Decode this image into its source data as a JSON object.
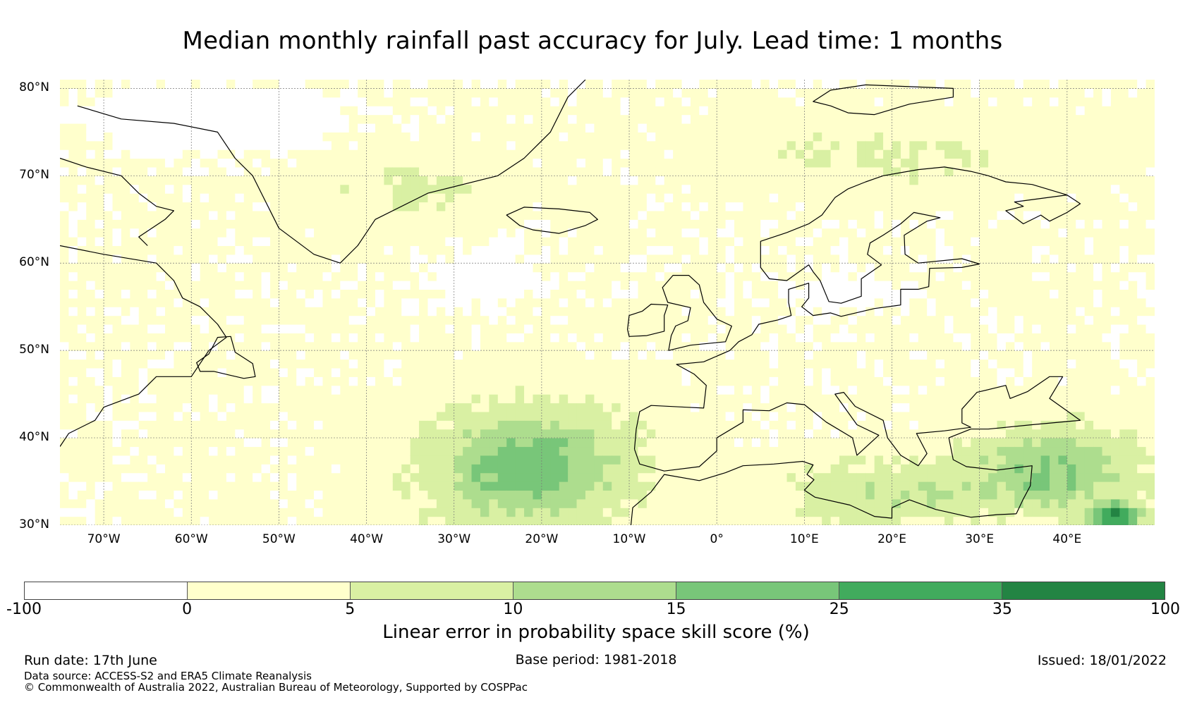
{
  "title": "Median monthly rainfall past accuracy for July. Lead time: 1 months",
  "map": {
    "lon_range": [
      -75,
      50
    ],
    "lat_range": [
      30,
      81
    ],
    "lat_labels": [
      "30°N",
      "40°N",
      "50°N",
      "60°N",
      "70°N",
      "80°N"
    ],
    "lat_values": [
      30,
      40,
      50,
      60,
      70,
      80
    ],
    "lon_labels": [
      "70°W",
      "60°W",
      "50°W",
      "40°W",
      "30°W",
      "20°W",
      "10°W",
      "0°",
      "10°E",
      "20°E",
      "30°E",
      "40°E"
    ],
    "lon_values": [
      -70,
      -60,
      -50,
      -40,
      -30,
      -20,
      -10,
      0,
      10,
      20,
      30,
      40
    ]
  },
  "colorbar": {
    "label": "Linear error in probability space skill score (%)",
    "ticks": [
      "-100",
      "0",
      "5",
      "10",
      "15",
      "25",
      "35",
      "100"
    ],
    "colors": [
      "#ffffff",
      "#ffffcc",
      "#d9f0a3",
      "#addd8e",
      "#78c679",
      "#41ab5d",
      "#238443"
    ]
  },
  "footer": {
    "run_date": "Run date: 17th June",
    "base_period": "Base period: 1981-2018",
    "issued": "Issued: 18/01/2022",
    "data_source": "Data source: ACCESS-S2 and ERA5 Climate Reanalysis",
    "copyright": "© Commonwealth of Australia 2022, Australian Bureau of Meteorology, Supported by COSPPac"
  }
}
